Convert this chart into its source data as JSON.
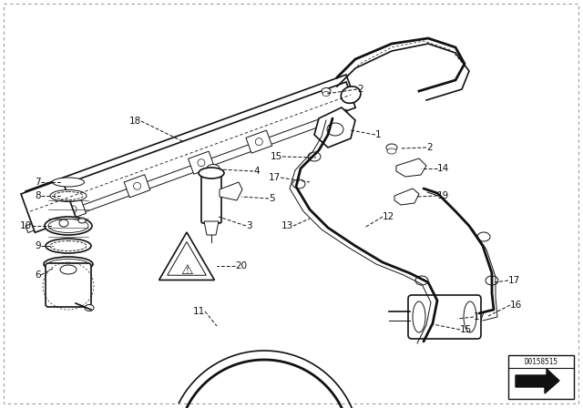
{
  "bg_color": "#ffffff",
  "border_color": "#aaaaaa",
  "line_color": "#111111",
  "doc_id": "D0158515",
  "fig_width": 6.4,
  "fig_height": 4.48,
  "dpi": 100
}
